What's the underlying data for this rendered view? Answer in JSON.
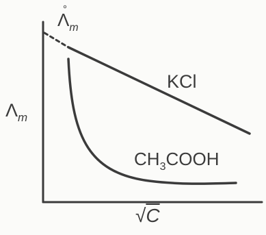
{
  "labels": {
    "lambda_top_main": "Λ",
    "lambda_top_degree": "°",
    "lambda_top_sub": "m",
    "lambda_left_main": "Λ",
    "lambda_left_sub": "m",
    "kcl": "KCl",
    "ch3cooh_prefix": "CH",
    "ch3cooh_sub": "3",
    "ch3cooh_suffix": "COOH",
    "sqrtc_radical": "√",
    "sqrtc_c": "C"
  },
  "colors": {
    "ink": "#3b3b3b",
    "background": "#fbfbf9"
  }
}
